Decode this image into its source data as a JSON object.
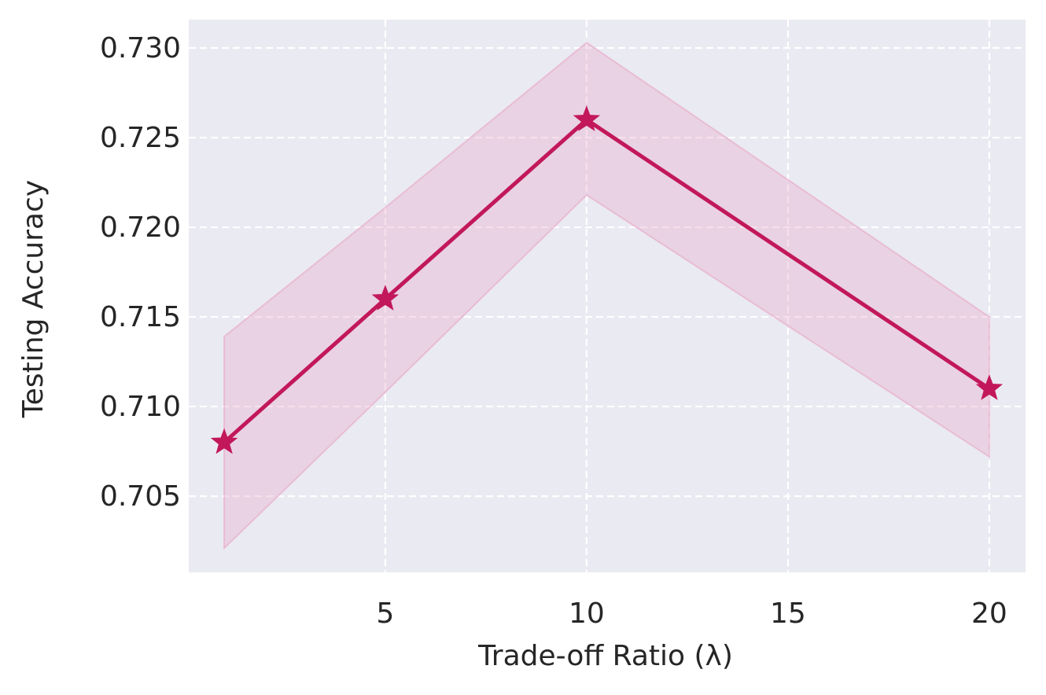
{
  "chart_data": {
    "type": "line",
    "xlabel": "Trade-off Ratio (λ)",
    "ylabel": "Testing Accuracy",
    "x": [
      1,
      5,
      10,
      20
    ],
    "series": [
      {
        "color": "#c2185b",
        "band_color": "#e7a7c8",
        "values": [
          0.708,
          0.716,
          0.726,
          0.711
        ],
        "upper": [
          0.7139,
          0.7211,
          0.7303,
          0.715
        ],
        "lower": [
          0.7021,
          0.7108,
          0.7218,
          0.7072
        ]
      }
    ],
    "xlim": [
      0.12,
      20.9
    ],
    "ylim": [
      0.70075,
      0.73158
    ],
    "xticks": [
      5,
      10,
      15,
      20
    ],
    "yticks": [
      {
        "value": 0.705,
        "label": "0.705"
      },
      {
        "value": 0.71,
        "label": "0.710"
      },
      {
        "value": 0.715,
        "label": "0.715"
      },
      {
        "value": 0.72,
        "label": "0.720"
      },
      {
        "value": 0.725,
        "label": "0.725"
      },
      {
        "value": 0.73,
        "label": "0.730"
      }
    ],
    "grid": true,
    "marker": "star"
  }
}
